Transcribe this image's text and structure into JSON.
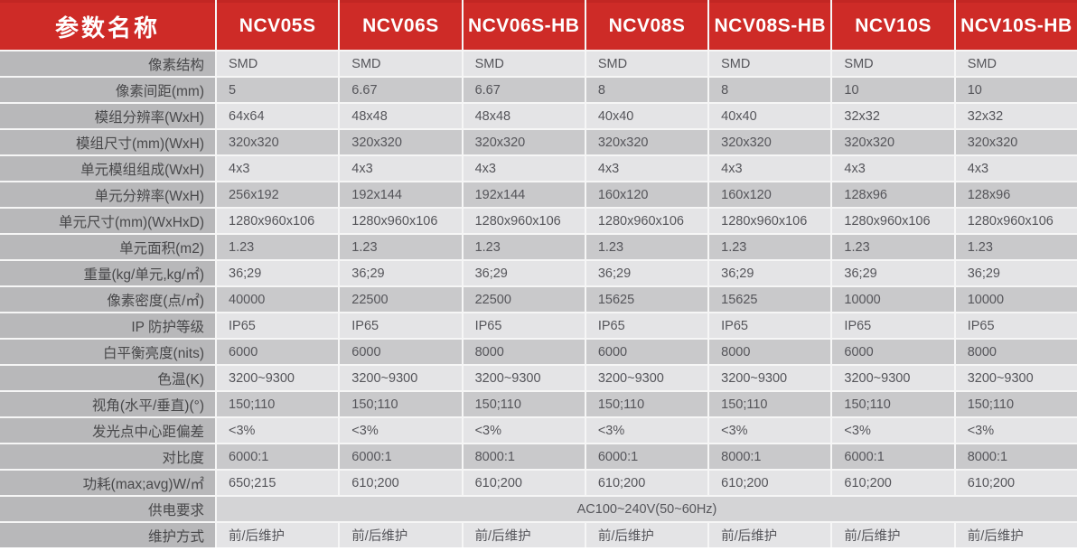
{
  "table": {
    "param_title": "参数名称",
    "models": [
      "NCV05S",
      "NCV06S",
      "NCV06S-HB",
      "NCV08S",
      "NCV08S-HB",
      "NCV10S",
      "NCV10S-HB"
    ],
    "rows": [
      {
        "label": "像素结构",
        "values": [
          "SMD",
          "SMD",
          "SMD",
          "SMD",
          "SMD",
          "SMD",
          "SMD"
        ]
      },
      {
        "label": "像素间距(mm)",
        "values": [
          "5",
          "6.67",
          "6.67",
          "8",
          "8",
          "10",
          "10"
        ]
      },
      {
        "label": "模组分辨率(WxH)",
        "values": [
          "64x64",
          "48x48",
          "48x48",
          "40x40",
          "40x40",
          "32x32",
          "32x32"
        ]
      },
      {
        "label": "模组尺寸(mm)(WxH)",
        "values": [
          "320x320",
          "320x320",
          "320x320",
          "320x320",
          "320x320",
          "320x320",
          "320x320"
        ]
      },
      {
        "label": "单元模组组成(WxH)",
        "values": [
          "4x3",
          "4x3",
          "4x3",
          "4x3",
          "4x3",
          "4x3",
          "4x3"
        ]
      },
      {
        "label": "单元分辨率(WxH)",
        "values": [
          "256x192",
          "192x144",
          "192x144",
          "160x120",
          "160x120",
          "128x96",
          "128x96"
        ]
      },
      {
        "label": "单元尺寸(mm)(WxHxD)",
        "values": [
          "1280x960x106",
          "1280x960x106",
          "1280x960x106",
          "1280x960x106",
          "1280x960x106",
          "1280x960x106",
          "1280x960x106"
        ]
      },
      {
        "label": "单元面积(m2)",
        "values": [
          "1.23",
          "1.23",
          "1.23",
          "1.23",
          "1.23",
          "1.23",
          "1.23"
        ]
      },
      {
        "label": "重量(kg/单元,kg/㎡)",
        "values": [
          "36;29",
          "36;29",
          "36;29",
          "36;29",
          "36;29",
          "36;29",
          "36;29"
        ]
      },
      {
        "label": "像素密度(点/㎡)",
        "values": [
          "40000",
          "22500",
          "22500",
          "15625",
          "15625",
          "10000",
          "10000"
        ]
      },
      {
        "label": "IP 防护等级",
        "values": [
          "IP65",
          "IP65",
          "IP65",
          "IP65",
          "IP65",
          "IP65",
          "IP65"
        ]
      },
      {
        "label": "白平衡亮度(nits)",
        "values": [
          "6000",
          "6000",
          "8000",
          "6000",
          "8000",
          "6000",
          "8000"
        ]
      },
      {
        "label": "色温(K)",
        "values": [
          "3200~9300",
          "3200~9300",
          "3200~9300",
          "3200~9300",
          "3200~9300",
          "3200~9300",
          "3200~9300"
        ]
      },
      {
        "label": "视角(水平/垂直)(°)",
        "values": [
          "150;110",
          "150;110",
          "150;110",
          "150;110",
          "150;110",
          "150;110",
          "150;110"
        ]
      },
      {
        "label": "发光点中心距偏差",
        "values": [
          "<3%",
          "<3%",
          "<3%",
          "<3%",
          "<3%",
          "<3%",
          "<3%"
        ]
      },
      {
        "label": "对比度",
        "values": [
          "6000:1",
          "6000:1",
          "8000:1",
          "6000:1",
          "8000:1",
          "6000:1",
          "8000:1"
        ]
      },
      {
        "label": "功耗(max;avg)W/㎡",
        "values": [
          "650;215",
          "610;200",
          "610;200",
          "610;200",
          "610;200",
          "610;200",
          "610;200"
        ]
      },
      {
        "label": "供电要求",
        "merged": "AC100~240V(50~60Hz)"
      },
      {
        "label": "维护方式",
        "values": [
          "前/后维护",
          "前/后维护",
          "前/后维护",
          "前/后维护",
          "前/后维护",
          "前/后维护",
          "前/后维护"
        ]
      }
    ]
  }
}
